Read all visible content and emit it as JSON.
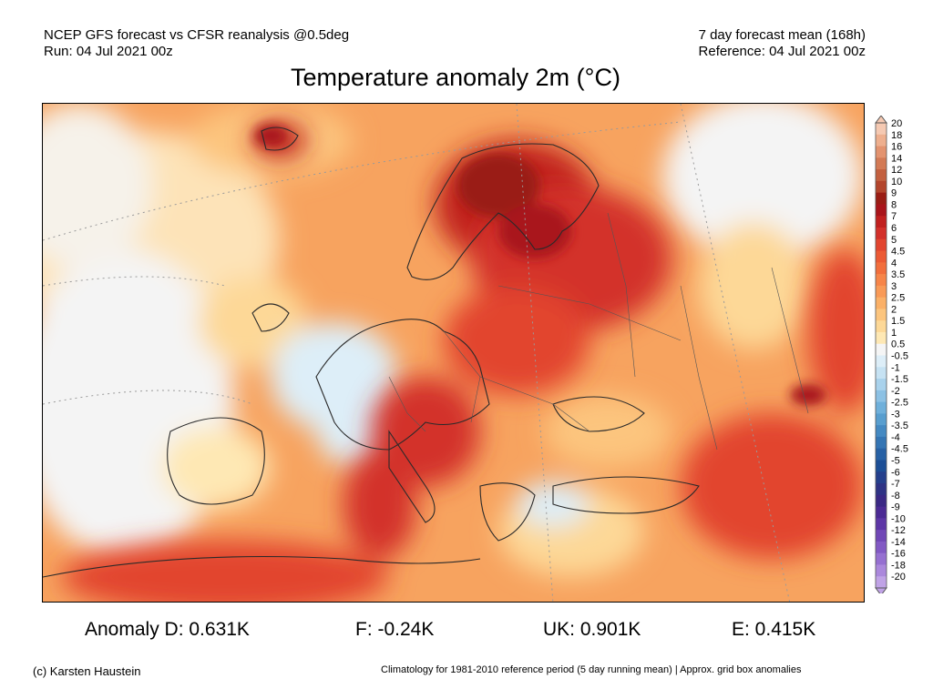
{
  "header": {
    "line1_left": "NCEP GFS forecast vs CFSR reanalysis @0.5deg",
    "line2_left": "Run: 04 Jul 2021 00z",
    "line1_right": "7 day forecast mean (168h)",
    "line2_right": "Reference: 04 Jul 2021 00z"
  },
  "title": "Temperature anomaly 2m (°C)",
  "legend": {
    "labels": [
      "20",
      "18",
      "16",
      "14",
      "12",
      "10",
      "9",
      "8",
      "7",
      "6",
      "5",
      "4.5",
      "4",
      "3.5",
      "3",
      "2.5",
      "2",
      "1.5",
      "1",
      "0.5",
      "-0.5",
      "-1",
      "-1.5",
      "-2",
      "-2.5",
      "-3",
      "-3.5",
      "-4",
      "-4.5",
      "-5",
      "-6",
      "-7",
      "-8",
      "-9",
      "-10",
      "-12",
      "-14",
      "-16",
      "-18",
      "-20"
    ],
    "colors": [
      "#f5c9b2",
      "#eeaf8e",
      "#e3936f",
      "#d37a55",
      "#c3603f",
      "#b3452c",
      "#9a1d14",
      "#a9141a",
      "#c1201f",
      "#d3302a",
      "#e2452f",
      "#ec5a34",
      "#f26e3c",
      "#f78549",
      "#f99a57",
      "#fbb067",
      "#fcc57e",
      "#fdd897",
      "#fee8b4",
      "#f5f5f5",
      "#ddeef8",
      "#c6e2f3",
      "#a9d2ec",
      "#8cc1e4",
      "#6fb0db",
      "#589ecf",
      "#4489c2",
      "#3475b4",
      "#2761a5",
      "#1c4e96",
      "#243f8c",
      "#2e3284",
      "#3a2884",
      "#4b2a94",
      "#5d36a6",
      "#7047b6",
      "#8259c4",
      "#9670d1",
      "#ab88dc",
      "#c0a3e6"
    ]
  },
  "stats": {
    "d": "Anomaly D: 0.631K",
    "f": "F: -0.24K",
    "uk": "UK: 0.901K",
    "e": "E: 0.415K"
  },
  "footer": {
    "credit": "(c) Karsten Haustein",
    "note": "Climatology for 1981-2010 reference period (5 day running mean) | Approx. grid box anomalies"
  }
}
